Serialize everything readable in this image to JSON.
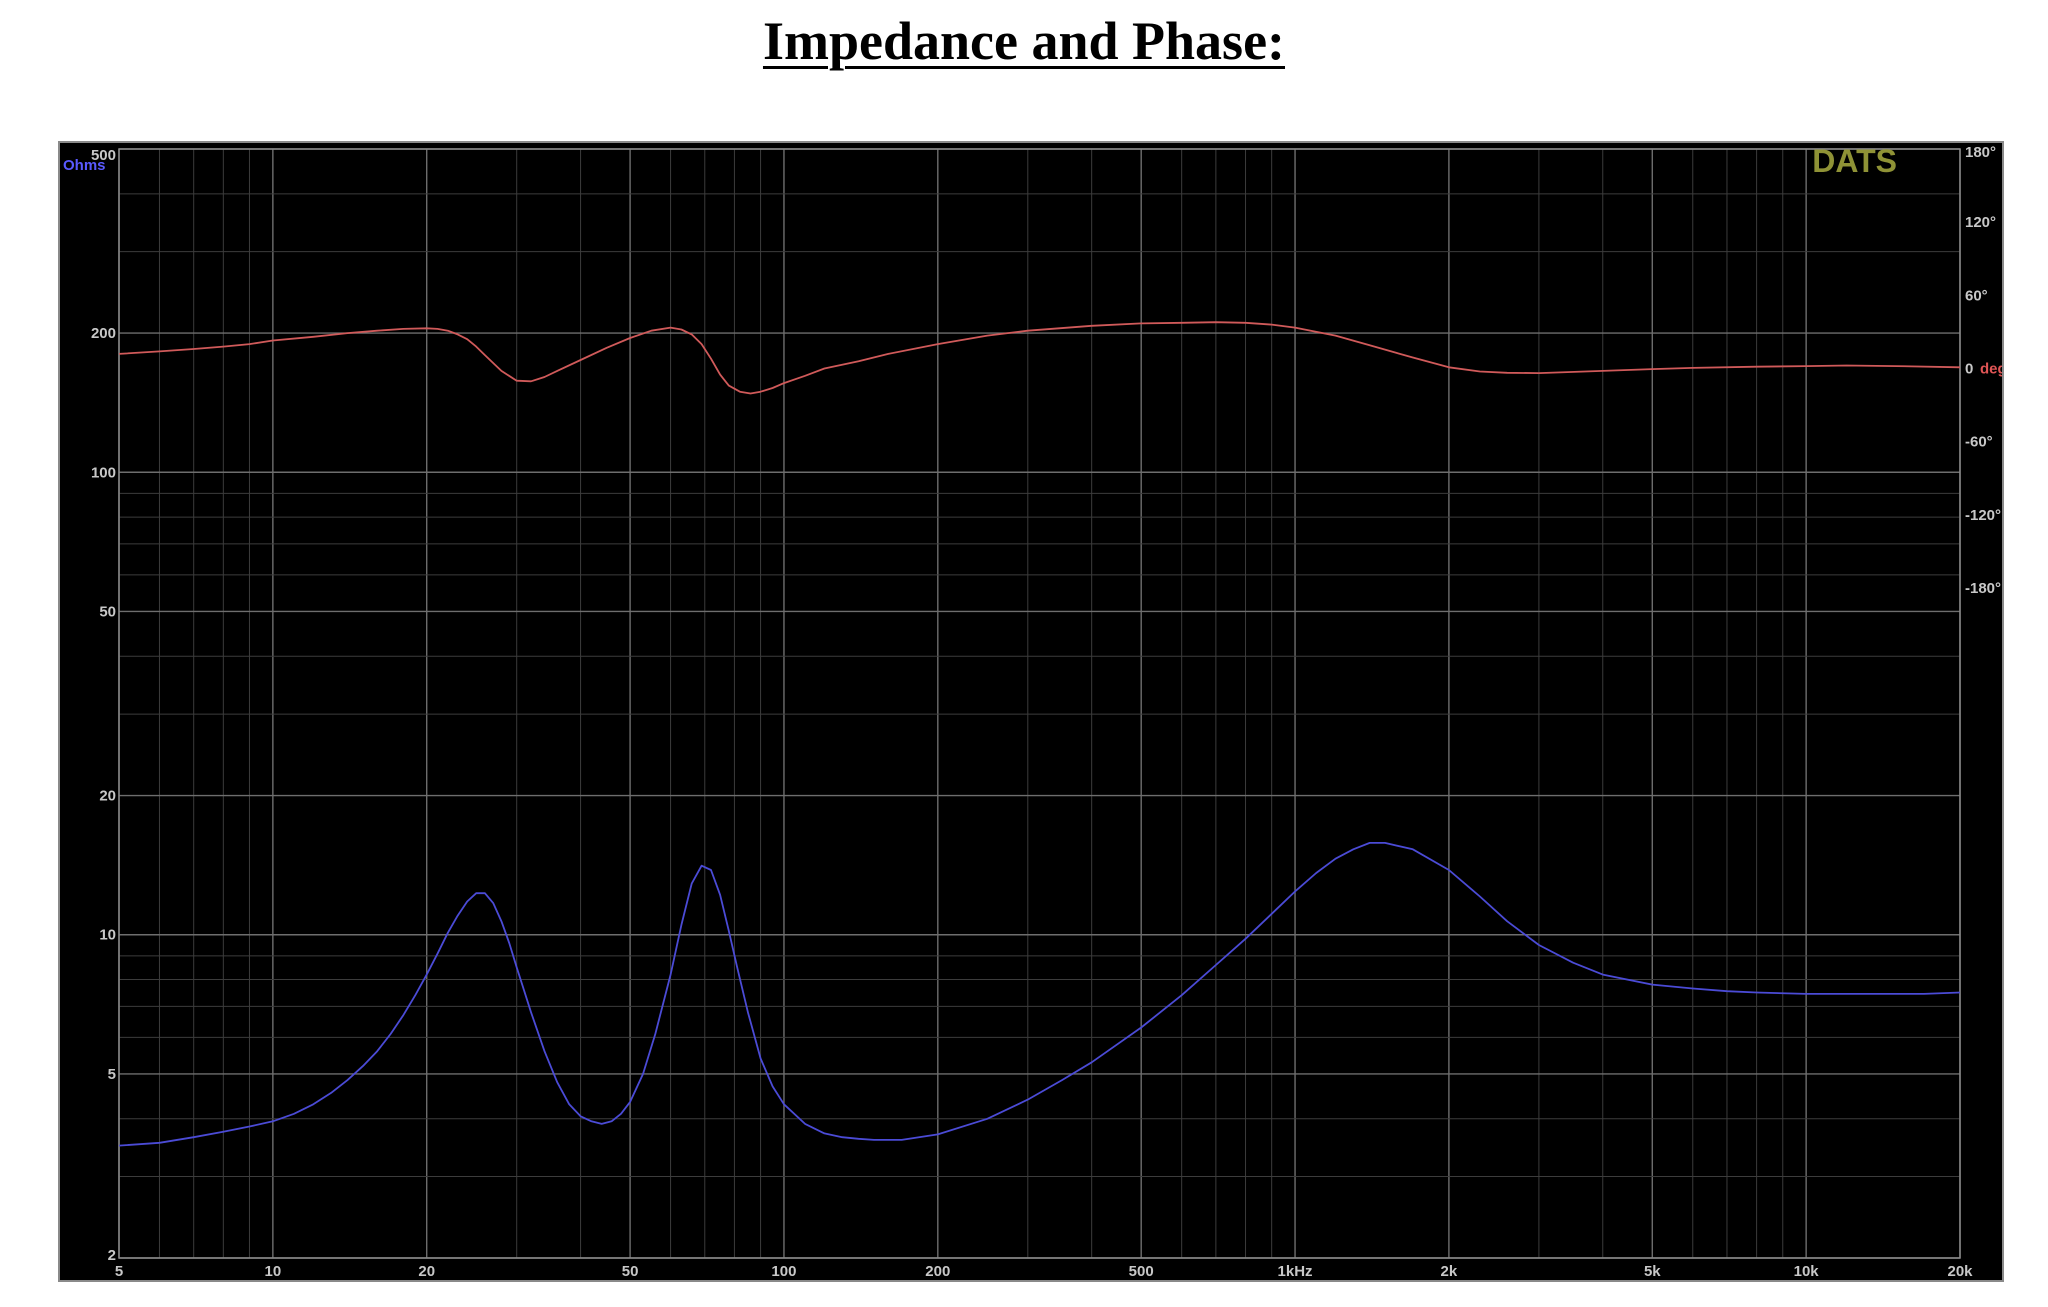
{
  "header": {
    "title": "Impedance and Phase:"
  },
  "chart_data": {
    "type": "line",
    "title": "",
    "watermark": "DATS",
    "x_scale": "log",
    "y_left_scale": "log",
    "y_right_scale": "linear",
    "xlim": [
      5,
      20000
    ],
    "ylim_left": [
      2,
      500
    ],
    "ylim_right": [
      -180,
      180
    ],
    "grid": true,
    "x_ticks": [
      {
        "value": 5,
        "label": "5"
      },
      {
        "value": 10,
        "label": "10"
      },
      {
        "value": 20,
        "label": "20"
      },
      {
        "value": 50,
        "label": "50"
      },
      {
        "value": 100,
        "label": "100"
      },
      {
        "value": 200,
        "label": "200"
      },
      {
        "value": 500,
        "label": "500"
      },
      {
        "value": 1000,
        "label": "1kHz"
      },
      {
        "value": 2000,
        "label": "2k"
      },
      {
        "value": 5000,
        "label": "5k"
      },
      {
        "value": 10000,
        "label": "10k"
      },
      {
        "value": 20000,
        "label": "20k"
      }
    ],
    "y_left_ticks": [
      {
        "value": 500,
        "label": "500"
      },
      {
        "value": 200,
        "label": "200"
      },
      {
        "value": 100,
        "label": "100"
      },
      {
        "value": 50,
        "label": "50"
      },
      {
        "value": 20,
        "label": "20"
      },
      {
        "value": 10,
        "label": "10"
      },
      {
        "value": 5,
        "label": "5"
      },
      {
        "value": 2,
        "label": "2"
      }
    ],
    "y_left_unit": "Ohms",
    "y_right_ticks": [
      {
        "value": 180,
        "label": "180°"
      },
      {
        "value": 120,
        "label": "120°"
      },
      {
        "value": 60,
        "label": "60°"
      },
      {
        "value": 0,
        "label": "0"
      },
      {
        "value": -60,
        "label": "-60°"
      },
      {
        "value": -120,
        "label": "-120°"
      },
      {
        "value": -180,
        "label": "-180°"
      }
    ],
    "y_right_unit": "deg",
    "series": [
      {
        "axis": "left",
        "color": "#4b4bd6",
        "x": [
          5,
          6,
          7,
          8,
          9,
          10,
          11,
          12,
          13,
          14,
          15,
          16,
          17,
          18,
          19,
          20,
          21,
          22,
          23,
          24,
          25,
          26,
          27,
          28,
          29,
          30,
          32,
          34,
          36,
          38,
          40,
          42,
          44,
          46,
          48,
          50,
          53,
          56,
          60,
          63,
          66,
          69,
          72,
          75,
          78,
          81,
          85,
          90,
          95,
          100,
          110,
          120,
          130,
          140,
          150,
          170,
          200,
          250,
          300,
          350,
          400,
          500,
          600,
          700,
          800,
          900,
          1000,
          1100,
          1200,
          1300,
          1400,
          1500,
          1700,
          2000,
          2300,
          2600,
          3000,
          3500,
          4000,
          5000,
          6000,
          7000,
          8000,
          10000,
          12000,
          15000,
          17000,
          20000
        ],
        "values": [
          3.5,
          3.55,
          3.65,
          3.75,
          3.85,
          3.95,
          4.1,
          4.3,
          4.55,
          4.85,
          5.2,
          5.6,
          6.1,
          6.7,
          7.4,
          8.2,
          9.1,
          10.1,
          11.0,
          11.8,
          12.3,
          12.3,
          11.7,
          10.7,
          9.6,
          8.5,
          6.8,
          5.6,
          4.8,
          4.3,
          4.05,
          3.95,
          3.9,
          3.95,
          4.1,
          4.35,
          5.0,
          6.1,
          8.2,
          10.5,
          12.9,
          14.1,
          13.8,
          12.2,
          10.2,
          8.5,
          6.8,
          5.4,
          4.7,
          4.3,
          3.9,
          3.72,
          3.65,
          3.62,
          3.6,
          3.6,
          3.7,
          4.0,
          4.4,
          4.85,
          5.3,
          6.3,
          7.4,
          8.6,
          9.8,
          11.1,
          12.4,
          13.6,
          14.6,
          15.3,
          15.8,
          15.8,
          15.3,
          13.8,
          12.1,
          10.7,
          9.5,
          8.7,
          8.2,
          7.8,
          7.65,
          7.55,
          7.5,
          7.45,
          7.45,
          7.45,
          7.45,
          7.5
        ]
      },
      {
        "axis": "right",
        "color": "#d05a5a",
        "x": [
          5,
          6,
          7,
          8,
          9,
          10,
          12,
          14,
          16,
          18,
          20,
          21,
          22,
          23,
          24,
          25,
          26,
          28,
          30,
          32,
          34,
          36,
          40,
          45,
          50,
          55,
          60,
          63,
          66,
          69,
          72,
          75,
          78,
          82,
          86,
          90,
          95,
          100,
          110,
          120,
          140,
          160,
          200,
          250,
          300,
          400,
          500,
          600,
          700,
          800,
          900,
          1000,
          1200,
          1400,
          1700,
          2000,
          2300,
          2600,
          3000,
          4000,
          5000,
          6000,
          8000,
          10000,
          12000,
          15000,
          20000
        ],
        "values": [
          12,
          14,
          16,
          18,
          20,
          23,
          26,
          29,
          31,
          32.5,
          33,
          32.5,
          31,
          28,
          24,
          18,
          11,
          -2,
          -10,
          -10.5,
          -7,
          -2,
          7,
          17,
          25,
          31,
          33.5,
          32,
          28,
          20,
          8,
          -5,
          -14,
          -19,
          -20.5,
          -19,
          -16,
          -12,
          -6,
          0,
          6,
          12,
          20,
          27,
          31,
          35,
          37,
          37.5,
          38,
          37.5,
          36,
          33.5,
          27,
          19,
          9,
          1,
          -2.5,
          -3.5,
          -3.8,
          -2,
          -0.5,
          0.5,
          1.5,
          2,
          2.5,
          2,
          1
        ]
      }
    ]
  }
}
